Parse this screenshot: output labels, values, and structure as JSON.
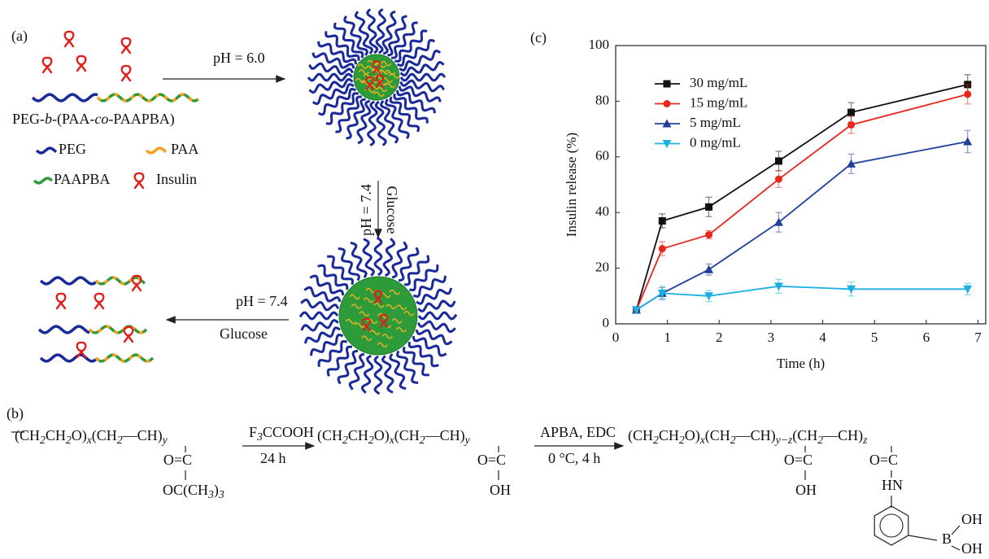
{
  "panel_labels": [
    "(a)",
    "(b)",
    "(c)"
  ],
  "scheme": {
    "arrow1_label": "pH = 6.0",
    "polymer": [
      "PEG-",
      "b",
      "-(PAA-",
      "co",
      "-PAAPBA)"
    ],
    "legend": [
      "PEG",
      "PAA",
      "PAAPBA",
      "Insulin"
    ],
    "vertical_labels": [
      "pH = 7.4",
      "Glucose"
    ],
    "arrow3_labels": [
      "pH = 7.4",
      "Glucose"
    ]
  },
  "synthesis": {
    "reactant": {
      "chain": [
        "(CH",
        "2",
        "CH",
        "2",
        "O)",
        "x",
        "(CH",
        "2",
        "—CH)",
        "y"
      ],
      "group_top": [
        "O=C"
      ],
      "group_bottom": [
        "OC(CH",
        "3",
        ")",
        "3"
      ]
    },
    "reagent1": {
      "above": [
        "F",
        "3",
        "CCOOH"
      ],
      "below": [
        "24 h"
      ]
    },
    "intermediate": {
      "chain": [
        "(CH",
        "2",
        "CH",
        "2",
        "O)",
        "x",
        "(CH",
        "2",
        "—CH)",
        "y"
      ],
      "group_top": [
        "O=C"
      ],
      "group_bottom": [
        "OH"
      ]
    },
    "reagent2": {
      "above": [
        "APBA, EDC"
      ],
      "below": [
        "0 °C, 4 h"
      ]
    },
    "product": {
      "chain": [
        "(CH",
        "2",
        "CH",
        "2",
        "O)",
        "x",
        "(CH",
        "2",
        "—CH)",
        "y−z",
        "(CH",
        "2",
        "—CH)",
        "z"
      ],
      "group1_top": [
        "O=C"
      ],
      "group1_bottom": [
        "OH"
      ],
      "group2_top": [
        "O=C"
      ],
      "group2_mid": [
        "HN"
      ],
      "boron": [
        "B"
      ],
      "oh1": [
        "OH"
      ],
      "oh2": [
        "OH"
      ]
    }
  },
  "chart_data": {
    "type": "line",
    "x_label": "Time (h)",
    "y_label": "Insulin release (%)",
    "x": [
      0.4,
      0.9,
      1.8,
      3.15,
      4.55,
      6.8
    ],
    "series": [
      {
        "name": "30 mg/mL",
        "color": "#111111",
        "marker": "square",
        "values": [
          5,
          37,
          42,
          58.5,
          76,
          86
        ],
        "errors": [
          1,
          2.5,
          3.5,
          3.5,
          3.5,
          3.5
        ]
      },
      {
        "name": "15 mg/mL",
        "color": "#e8261c",
        "marker": "circle",
        "values": [
          5,
          27,
          32,
          52,
          71.5,
          82.5
        ],
        "errors": [
          1,
          2.5,
          1.5,
          3,
          3,
          3.5
        ]
      },
      {
        "name": "5 mg/mL",
        "color": "#1f3f9a",
        "marker": "triangle",
        "values": [
          5,
          11,
          19.5,
          36.5,
          57.5,
          65.5
        ],
        "errors": [
          1,
          2,
          2,
          3.5,
          3.5,
          4
        ]
      },
      {
        "name": "0 mg/mL",
        "color": "#1ab0e0",
        "marker": "triangle-down",
        "values": [
          5,
          11,
          10,
          13.5,
          12.5,
          12.5
        ],
        "errors": [
          1,
          2.5,
          2,
          2.5,
          2.5,
          2
        ]
      }
    ],
    "xlim": [
      0,
      7.15
    ],
    "ylim": [
      0,
      100
    ],
    "xticks": [
      0,
      1,
      2,
      3,
      4,
      5,
      6,
      7
    ],
    "yticks": [
      0,
      20,
      40,
      60,
      80,
      100
    ]
  }
}
